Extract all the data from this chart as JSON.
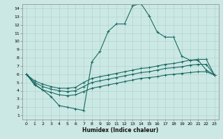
{
  "xlabel": "Humidex (Indice chaleur)",
  "xlim": [
    -0.5,
    23.5
  ],
  "ylim": [
    0.5,
    14.5
  ],
  "xticks": [
    0,
    1,
    2,
    3,
    4,
    5,
    6,
    7,
    8,
    9,
    10,
    11,
    12,
    13,
    14,
    15,
    16,
    17,
    18,
    19,
    20,
    21,
    22,
    23
  ],
  "yticks": [
    1,
    2,
    3,
    4,
    5,
    6,
    7,
    8,
    9,
    10,
    11,
    12,
    13,
    14
  ],
  "bg_color": "#cce8e4",
  "grid_color": "#b0d4d0",
  "line_color": "#1a6b63",
  "line1_x": [
    0,
    1,
    2,
    3,
    4,
    5,
    6,
    7,
    8,
    9,
    10,
    11,
    12,
    13,
    14,
    15,
    16,
    17,
    18,
    19,
    20,
    21,
    22,
    23
  ],
  "line1_y": [
    6.0,
    4.8,
    4.1,
    3.3,
    2.2,
    2.0,
    1.8,
    1.6,
    7.5,
    8.8,
    11.2,
    12.1,
    12.1,
    14.3,
    14.6,
    13.1,
    11.1,
    10.5,
    10.5,
    8.2,
    7.7,
    7.7,
    6.5,
    5.9
  ],
  "line2_x": [
    0,
    1,
    2,
    3,
    4,
    5,
    6,
    7,
    8,
    9,
    10,
    11,
    12,
    13,
    14,
    15,
    16,
    17,
    18,
    19,
    20,
    21,
    22,
    23
  ],
  "line2_y": [
    6.0,
    5.2,
    4.8,
    4.5,
    4.3,
    4.3,
    4.4,
    5.0,
    5.5,
    5.7,
    5.9,
    6.1,
    6.3,
    6.5,
    6.7,
    6.8,
    7.0,
    7.2,
    7.3,
    7.5,
    7.7,
    7.8,
    7.8,
    5.9
  ],
  "line3_x": [
    0,
    1,
    2,
    3,
    4,
    5,
    6,
    7,
    8,
    9,
    10,
    11,
    12,
    13,
    14,
    15,
    16,
    17,
    18,
    19,
    20,
    21,
    22,
    23
  ],
  "line3_y": [
    6.0,
    5.0,
    4.5,
    4.2,
    4.0,
    3.9,
    4.0,
    4.5,
    5.0,
    5.2,
    5.4,
    5.6,
    5.8,
    6.0,
    6.2,
    6.3,
    6.5,
    6.7,
    6.8,
    6.9,
    7.1,
    7.2,
    7.2,
    5.9
  ],
  "line4_x": [
    0,
    1,
    2,
    3,
    4,
    5,
    6,
    7,
    8,
    9,
    10,
    11,
    12,
    13,
    14,
    15,
    16,
    17,
    18,
    19,
    20,
    21,
    22,
    23
  ],
  "line4_y": [
    6.0,
    4.7,
    4.1,
    3.8,
    3.5,
    3.4,
    3.5,
    3.9,
    4.3,
    4.5,
    4.7,
    4.9,
    5.1,
    5.3,
    5.5,
    5.6,
    5.7,
    5.9,
    6.0,
    6.1,
    6.2,
    6.3,
    6.3,
    5.9
  ]
}
